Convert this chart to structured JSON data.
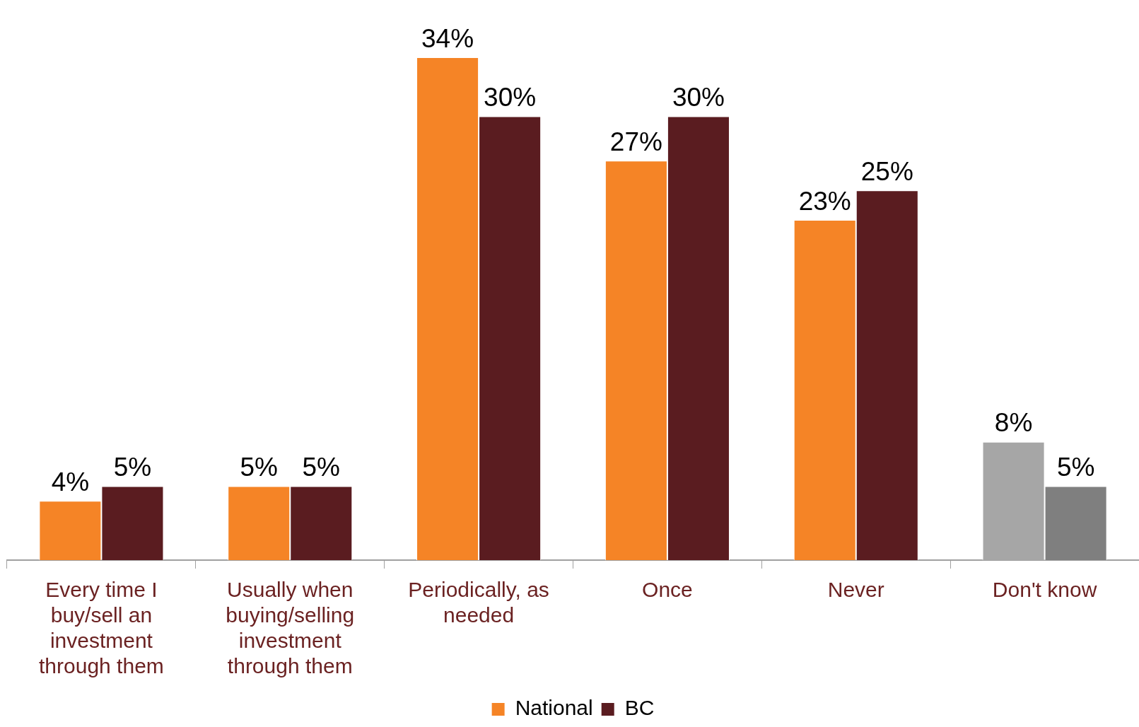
{
  "chart_data": {
    "type": "bar",
    "categories": [
      "Every time I buy/sell an investment through them",
      "Usually when buying/selling investment through them",
      "Periodically, as needed",
      "Once",
      "Never",
      "Don't know"
    ],
    "series": [
      {
        "name": "National",
        "color": "#f58426",
        "colors": [
          "#f58426",
          "#f58426",
          "#f58426",
          "#f58426",
          "#f58426",
          "#a6a6a6"
        ],
        "values": [
          4,
          5,
          34,
          27,
          23,
          8
        ],
        "value_labels": [
          "4%",
          "5%",
          "34%",
          "27%",
          "23%",
          "8%"
        ]
      },
      {
        "name": "BC",
        "color": "#5a1c20",
        "colors": [
          "#5a1c20",
          "#5a1c20",
          "#5a1c20",
          "#5a1c20",
          "#5a1c20",
          "#7f7f7f"
        ],
        "values": [
          5,
          5,
          30,
          30,
          25,
          5
        ],
        "value_labels": [
          "5%",
          "5%",
          "30%",
          "30%",
          "25%",
          "5%"
        ]
      }
    ],
    "legend": "bottom",
    "grid": false,
    "tick_labels": "x"
  }
}
